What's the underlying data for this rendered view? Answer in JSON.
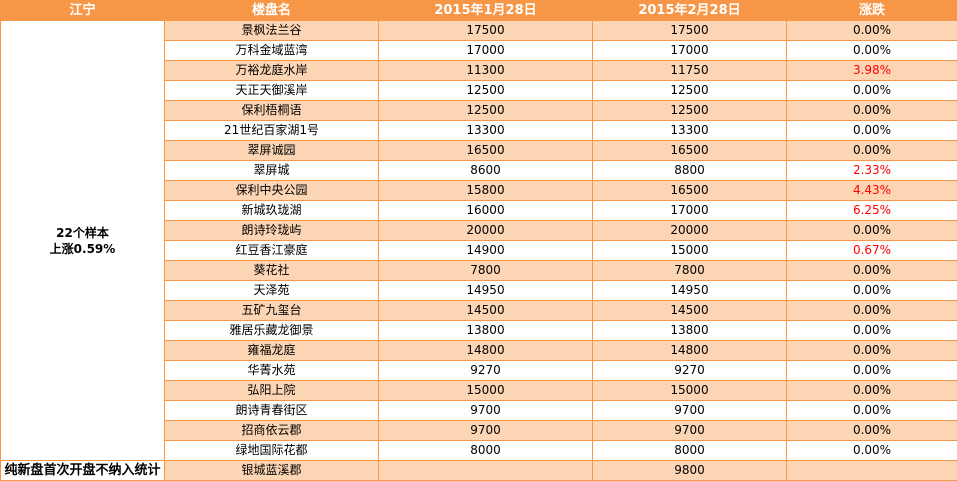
{
  "header": {
    "district": "江宁",
    "name": "楼盘名",
    "date1": "2015年1月28日",
    "date2": "2015年2月28日",
    "change": "涨跌"
  },
  "summary": {
    "line1": "22个样本",
    "line2": "上涨0.59%"
  },
  "colors": {
    "header": "#F79646",
    "stripe": "#FCD5B4",
    "rise": "#FF0000"
  },
  "rows": [
    {
      "name": "景枫法兰谷",
      "p1": "17500",
      "p2": "17500",
      "chg": "0.00%",
      "up": false
    },
    {
      "name": "万科金域蓝湾",
      "p1": "17000",
      "p2": "17000",
      "chg": "0.00%",
      "up": false
    },
    {
      "name": "万裕龙庭水岸",
      "p1": "11300",
      "p2": "11750",
      "chg": "3.98%",
      "up": true
    },
    {
      "name": "天正天御溪岸",
      "p1": "12500",
      "p2": "12500",
      "chg": "0.00%",
      "up": false
    },
    {
      "name": "保利梧桐语",
      "p1": "12500",
      "p2": "12500",
      "chg": "0.00%",
      "up": false
    },
    {
      "name": "21世纪百家湖1号",
      "p1": "13300",
      "p2": "13300",
      "chg": "0.00%",
      "up": false
    },
    {
      "name": "翠屏诚园",
      "p1": "16500",
      "p2": "16500",
      "chg": "0.00%",
      "up": false
    },
    {
      "name": "翠屏城",
      "p1": "8600",
      "p2": "8800",
      "chg": "2.33%",
      "up": true
    },
    {
      "name": "保利中央公园",
      "p1": "15800",
      "p2": "16500",
      "chg": "4.43%",
      "up": true
    },
    {
      "name": "新城玖珑湖",
      "p1": "16000",
      "p2": "17000",
      "chg": "6.25%",
      "up": true
    },
    {
      "name": "朗诗玲珑屿",
      "p1": "20000",
      "p2": "20000",
      "chg": "0.00%",
      "up": false
    },
    {
      "name": "红豆香江豪庭",
      "p1": "14900",
      "p2": "15000",
      "chg": "0.67%",
      "up": true
    },
    {
      "name": "葵花社",
      "p1": "7800",
      "p2": "7800",
      "chg": "0.00%",
      "up": false
    },
    {
      "name": "天泽苑",
      "p1": "14950",
      "p2": "14950",
      "chg": "0.00%",
      "up": false
    },
    {
      "name": "五矿九玺台",
      "p1": "14500",
      "p2": "14500",
      "chg": "0.00%",
      "up": false
    },
    {
      "name": "雅居乐藏龙御景",
      "p1": "13800",
      "p2": "13800",
      "chg": "0.00%",
      "up": false
    },
    {
      "name": "雍福龙庭",
      "p1": "14800",
      "p2": "14800",
      "chg": "0.00%",
      "up": false
    },
    {
      "name": "华菁水苑",
      "p1": "9270",
      "p2": "9270",
      "chg": "0.00%",
      "up": false
    },
    {
      "name": "弘阳上院",
      "p1": "15000",
      "p2": "15000",
      "chg": "0.00%",
      "up": false
    },
    {
      "name": "朗诗青春街区",
      "p1": "9700",
      "p2": "9700",
      "chg": "0.00%",
      "up": false
    },
    {
      "name": "招商依云郡",
      "p1": "9700",
      "p2": "9700",
      "chg": "0.00%",
      "up": false
    },
    {
      "name": "绿地国际花都",
      "p1": "8000",
      "p2": "8000",
      "chg": "0.00%",
      "up": false
    }
  ],
  "last_row": {
    "label": "纯新盘首次开盘不纳入统计",
    "name": "银城蓝溪郡",
    "p1": "",
    "p2": "9800",
    "chg": ""
  }
}
